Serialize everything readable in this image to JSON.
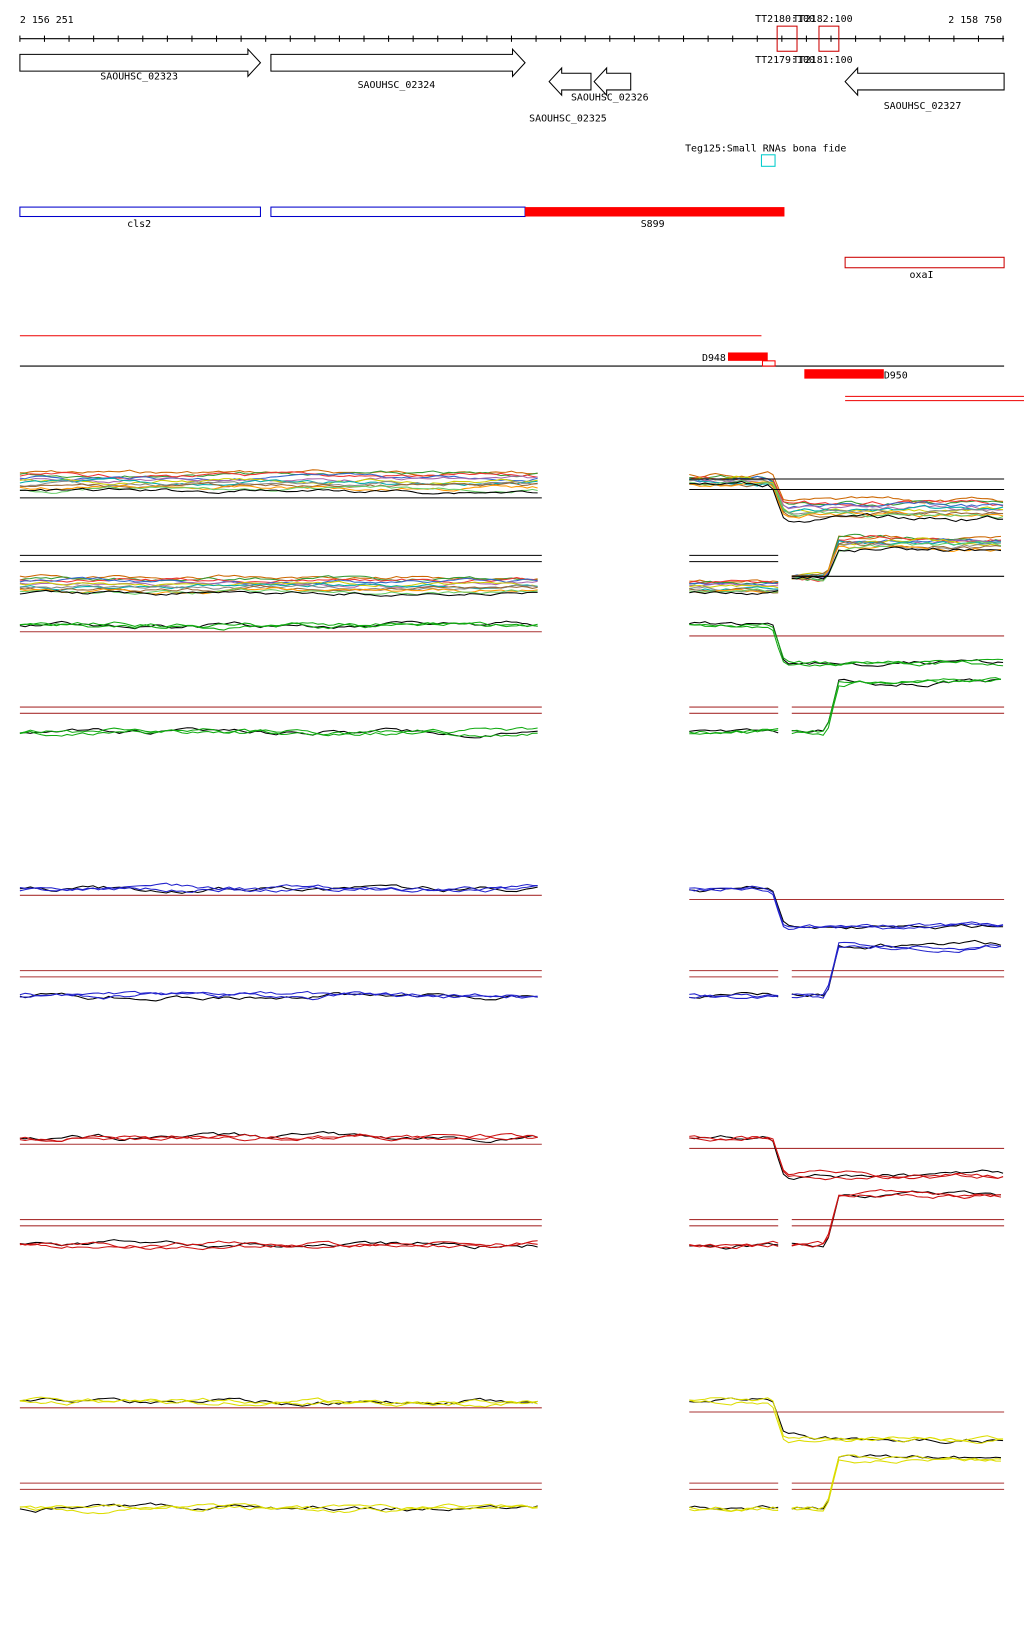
{
  "ruler": {
    "start": "2 156 251",
    "end": "2 158 750"
  },
  "probes": {
    "top": [
      "TT2180:100",
      "TT2182:100"
    ],
    "bottom": [
      "TT2179:100",
      "TT2181:100"
    ]
  },
  "genes": [
    "SAOUHSC_02323",
    "SAOUHSC_02324",
    "SAOUHSC_02325",
    "SAOUHSC_02326",
    "SAOUHSC_02327"
  ],
  "srna": "Teg125:Small RNAs bona fide",
  "operons": [
    "cls2",
    "S899",
    "oxaI"
  ],
  "segments": [
    "D948",
    "D950"
  ]
}
